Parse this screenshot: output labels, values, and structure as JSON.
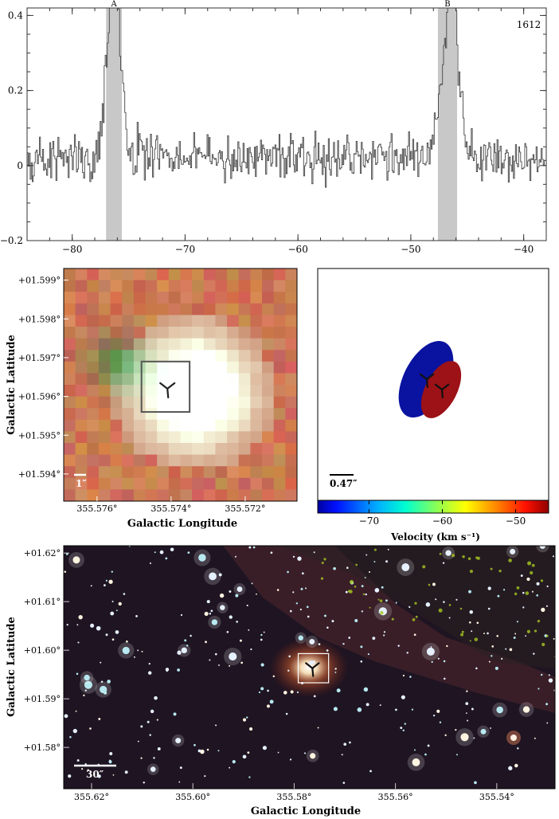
{
  "chart_data": [
    {
      "type": "line",
      "panel": "spectrum",
      "annotation": "1612",
      "xlim": [
        -84,
        -38
      ],
      "ylim": [
        -0.2,
        0.42
      ],
      "x_ticks": [
        "−80",
        "−70",
        "−60",
        "−50",
        "−40"
      ],
      "x_tick_values": [
        -80,
        -70,
        -60,
        -50,
        -40
      ],
      "y_ticks": [
        "−0.2",
        "0",
        "0.2",
        "0.4"
      ],
      "y_tick_values": [
        -0.2,
        0,
        0.2,
        0.4
      ],
      "shaded_regions": [
        {
          "label": "A",
          "x0": -77.0,
          "x1": -75.6
        },
        {
          "label": "B",
          "x0": -47.6,
          "x1": -45.9
        }
      ],
      "series": [
        {
          "values": {
            "x_start": -84,
            "x_step": 0.0911,
            "baseline_sigma": 0.045,
            "peaks": [
              {
                "center": -76.6,
                "height": 0.37,
                "width": 0.45
              },
              {
                "center": -76.0,
                "height": 0.3,
                "width": 0.45
              },
              {
                "center": -46.8,
                "height": 0.26,
                "width": 0.7
              },
              {
                "center": -46.2,
                "height": 0.22,
                "width": 0.5
              }
            ]
          }
        }
      ]
    },
    {
      "type": "heatmap",
      "panel": "zoom-image",
      "xlabel": "Galactic Longitude",
      "ylabel": "Galactic Latitude",
      "x_ticks": [
        "355.576°",
        "355.574°",
        "355.572°"
      ],
      "x_tick_values": [
        355.576,
        355.574,
        355.572
      ],
      "y_ticks": [
        "+01.599°",
        "+01.598°",
        "+01.597°",
        "+01.596°",
        "+01.595°",
        "+01.594°"
      ],
      "y_tick_values": [
        1.599,
        1.598,
        1.597,
        1.596,
        1.595,
        1.594
      ],
      "xlim": [
        355.5769,
        355.5706
      ],
      "ylim": [
        1.5933,
        1.5993
      ],
      "scale_bar_label": "1″",
      "box": {
        "l": [
          355.5748,
          355.5735
        ],
        "b": [
          1.5956,
          1.5969
        ]
      },
      "marker": {
        "l": 355.5741,
        "b": 1.5962
      }
    },
    {
      "type": "scatter",
      "panel": "velocity-maser-ellipses",
      "scale_bar_label": "0.47″",
      "colorbar_label": "Velocity (km s⁻¹)",
      "colorbar_ticks": [
        "−70",
        "−60",
        "−50"
      ],
      "colorbar_tick_values": [
        -70,
        -60,
        -50
      ],
      "colorbar_range": [
        -77,
        -45.5
      ],
      "points": [
        {
          "velocity": -76.3,
          "color": "#0a12a0"
        },
        {
          "velocity": -46.5,
          "color": "#9c1216"
        }
      ]
    },
    {
      "type": "heatmap",
      "panel": "wide-field-image",
      "xlabel": "Galactic Longitude",
      "ylabel": "Galactic Latitude",
      "x_ticks": [
        "355.62°",
        "355.60°",
        "355.58°",
        "355.56°",
        "355.54°"
      ],
      "x_tick_values": [
        355.62,
        355.6,
        355.58,
        355.56,
        355.54
      ],
      "y_ticks": [
        "+01.62°",
        "+01.61°",
        "+01.60°",
        "+01.59°",
        "+01.58°"
      ],
      "y_tick_values": [
        1.62,
        1.61,
        1.6,
        1.59,
        1.58
      ],
      "xlim": [
        355.6255,
        355.5285
      ],
      "ylim": [
        1.5715,
        1.6215
      ],
      "scale_bar_label": "30″",
      "box": {
        "l": [
          355.5792,
          355.5732
        ],
        "b": [
          1.5933,
          1.5993
        ]
      },
      "marker": {
        "l": 355.5764,
        "b": 1.5963
      }
    }
  ]
}
